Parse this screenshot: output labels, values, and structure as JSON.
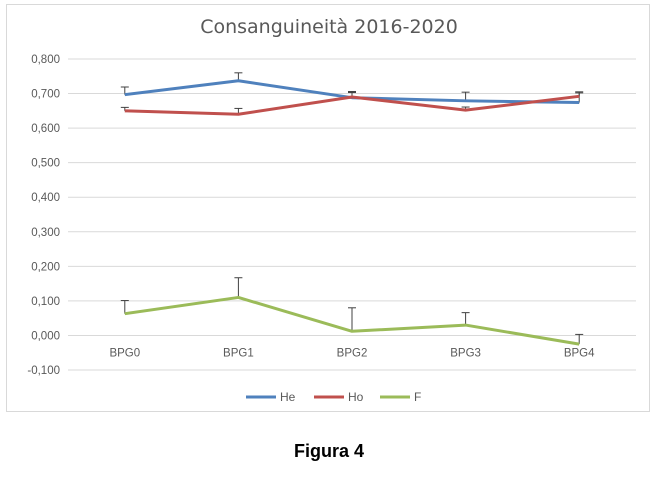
{
  "chart_data": {
    "type": "line",
    "title": "Consanguineità 2016-2020",
    "categories": [
      "BPG0",
      "BPG1",
      "BPG2",
      "BPG3",
      "BPG4"
    ],
    "y_tick_labels": [
      "-0,100",
      "0,000",
      "0,100",
      "0,200",
      "0,300",
      "0,400",
      "0,500",
      "0,600",
      "0,700",
      "0,800"
    ],
    "ylim": [
      -0.1,
      0.8
    ],
    "grid": true,
    "legend_placement": "bottom",
    "series": [
      {
        "name": "He",
        "color": "#4f81bd",
        "values": [
          0.697,
          0.737,
          0.688,
          0.679,
          0.674
        ],
        "error_plus": [
          0.022,
          0.023,
          0.018,
          0.025,
          0.028
        ]
      },
      {
        "name": "Ho",
        "color": "#c0504d",
        "values": [
          0.65,
          0.64,
          0.69,
          0.652,
          0.692
        ],
        "error_plus": [
          0.01,
          0.017,
          0.013,
          0.009,
          0.013
        ]
      },
      {
        "name": "F",
        "color": "#9bbb59",
        "values": [
          0.063,
          0.11,
          0.012,
          0.03,
          -0.025
        ],
        "error_plus": [
          0.038,
          0.057,
          0.068,
          0.036,
          0.028
        ]
      }
    ]
  },
  "caption": "Figura 4"
}
